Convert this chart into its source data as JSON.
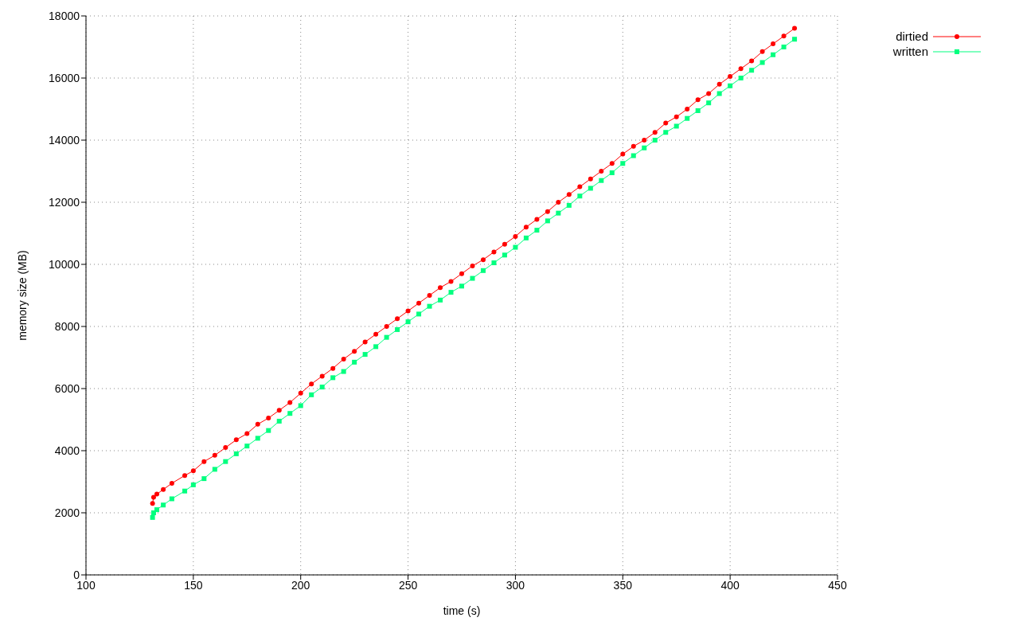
{
  "chart_data": {
    "type": "line",
    "xlabel": "time (s)",
    "ylabel": "memory size (MB)",
    "xlim": [
      100,
      450
    ],
    "xticks": [
      100,
      150,
      200,
      250,
      300,
      350,
      400,
      450
    ],
    "ylim": [
      0,
      18000
    ],
    "yticks": [
      0,
      2000,
      4000,
      6000,
      8000,
      10000,
      12000,
      14000,
      16000,
      18000
    ],
    "grid": true,
    "legend": "top right",
    "line_style": "solid",
    "series": [
      {
        "name": "dirtied",
        "color": "#ff0000",
        "marker": "circle",
        "x": [
          131,
          131.5,
          133,
          136,
          140,
          146,
          150,
          155,
          160,
          165,
          170,
          175,
          180,
          185,
          190,
          195,
          200,
          205,
          210,
          215,
          220,
          225,
          230,
          235,
          240,
          245,
          250,
          255,
          260,
          265,
          270,
          275,
          280,
          285,
          290,
          295,
          300,
          305,
          310,
          315,
          320,
          325,
          330,
          335,
          340,
          345,
          350,
          355,
          360,
          365,
          370,
          375,
          380,
          385,
          390,
          395,
          400,
          405,
          410,
          415,
          420,
          425,
          430
        ],
        "values": [
          2300,
          2500,
          2600,
          2750,
          2950,
          3200,
          3350,
          3650,
          3850,
          4100,
          4350,
          4550,
          4850,
          5050,
          5300,
          5550,
          5850,
          6150,
          6400,
          6650,
          6950,
          7200,
          7500,
          7750,
          8000,
          8250,
          8500,
          8750,
          9000,
          9250,
          9450,
          9700,
          9950,
          10150,
          10400,
          10650,
          10900,
          11200,
          11450,
          11700,
          12000,
          12250,
          12500,
          12750,
          13000,
          13250,
          13550,
          13800,
          14000,
          14250,
          14550,
          14750,
          15000,
          15300,
          15500,
          15800,
          16050,
          16300,
          16550,
          16850,
          17100,
          17350,
          17600
        ]
      },
      {
        "name": "written",
        "color": "#00ff7f",
        "marker": "square",
        "x": [
          131,
          131.5,
          133,
          136,
          140,
          146,
          150,
          155,
          160,
          165,
          170,
          175,
          180,
          185,
          190,
          195,
          200,
          205,
          210,
          215,
          220,
          225,
          230,
          235,
          240,
          245,
          250,
          255,
          260,
          265,
          270,
          275,
          280,
          285,
          290,
          295,
          300,
          305,
          310,
          315,
          320,
          325,
          330,
          335,
          340,
          345,
          350,
          355,
          360,
          365,
          370,
          375,
          380,
          385,
          390,
          395,
          400,
          405,
          410,
          415,
          420,
          425,
          430
        ],
        "values": [
          1850,
          2000,
          2100,
          2250,
          2450,
          2700,
          2900,
          3100,
          3400,
          3650,
          3900,
          4150,
          4400,
          4650,
          4950,
          5200,
          5450,
          5800,
          6050,
          6350,
          6550,
          6850,
          7100,
          7350,
          7650,
          7900,
          8150,
          8400,
          8650,
          8850,
          9100,
          9300,
          9550,
          9800,
          10050,
          10300,
          10550,
          10850,
          11100,
          11400,
          11650,
          11900,
          12200,
          12450,
          12700,
          12950,
          13250,
          13500,
          13750,
          14000,
          14250,
          14450,
          14700,
          14950,
          15200,
          15500,
          15750,
          16000,
          16250,
          16500,
          16750,
          17000,
          17250
        ]
      }
    ]
  }
}
